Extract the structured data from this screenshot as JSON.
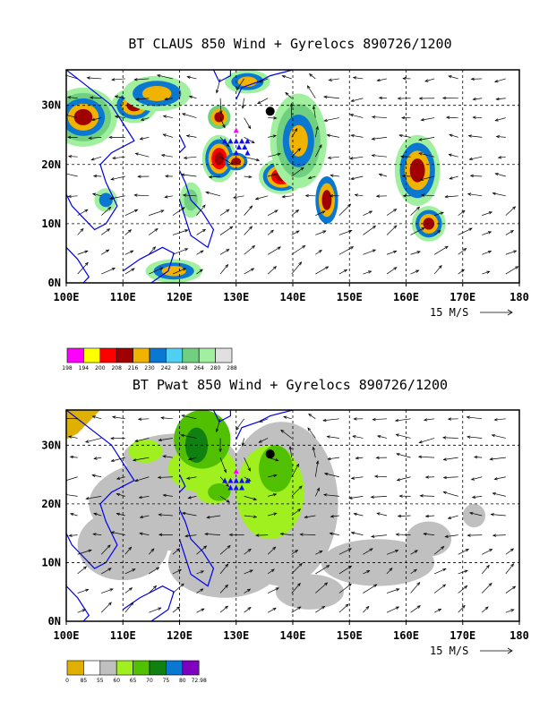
{
  "panels": [
    {
      "title": "BT CLAUS 850 Wind + Gyrelocs 890726/1200",
      "x_ticks": [
        "100E",
        "110E",
        "120E",
        "130E",
        "140E",
        "150E",
        "160E",
        "170E",
        "180"
      ],
      "y_ticks": [
        "0N",
        "10N",
        "20N",
        "30N"
      ],
      "wind_reference": "15 M/S",
      "colorbar_labels": [
        "198",
        "194",
        "200",
        "208",
        "216",
        "230",
        "242",
        "248",
        "264",
        "280",
        "288"
      ],
      "colorbar_colors": [
        "#ff00ff",
        "#ffff00",
        "#ff0000",
        "#a00000",
        "#f0b400",
        "#0a78d0",
        "#50d0f0",
        "#70d080",
        "#a0f0a0",
        "#e0e0e0"
      ]
    },
    {
      "title": "BT Pwat 850 Wind + Gyrelocs 890726/1200",
      "x_ticks": [
        "100E",
        "110E",
        "120E",
        "130E",
        "140E",
        "150E",
        "160E",
        "170E",
        "180"
      ],
      "y_ticks": [
        "0N",
        "10N",
        "20N",
        "30N"
      ],
      "wind_reference": "15 M/S",
      "colorbar_labels": [
        "0",
        "85",
        "55",
        "60",
        "65",
        "70",
        "75",
        "80",
        "72.98"
      ],
      "colorbar_colors": [
        "#e0b000",
        "#ffffff",
        "#c0c0c0",
        "#a0f020",
        "#50c000",
        "#108010",
        "#0a78d0",
        "#8000c0"
      ]
    }
  ],
  "chart_data": [
    {
      "type": "heatmap",
      "title": "BT CLAUS 850 Wind + Gyrelocs 890726/1200",
      "x_ticks": [
        "100E",
        "110E",
        "120E",
        "130E",
        "140E",
        "150E",
        "160E",
        "170E",
        "180"
      ],
      "y_ticks": [
        "0N",
        "10N",
        "20N",
        "30N"
      ],
      "xlim": [
        100,
        180
      ],
      "ylim": [
        0,
        36
      ],
      "grid": true,
      "wind_reference": "15 M/S",
      "gyre_center": [
        136,
        29
      ],
      "gyre_locations": [
        [
          130,
          24
        ],
        [
          131,
          24
        ],
        [
          132,
          24
        ],
        [
          129,
          24
        ],
        [
          128,
          24
        ],
        [
          130.5,
          23
        ],
        [
          131.5,
          23
        ],
        [
          130,
          22
        ],
        [
          132,
          22
        ]
      ],
      "gyre_center_magenta": [
        130,
        25.8
      ]
    },
    {
      "type": "heatmap",
      "title": "BT Pwat 850 Wind + Gyrelocs 890726/1200",
      "x_ticks": [
        "100E",
        "110E",
        "120E",
        "130E",
        "140E",
        "150E",
        "160E",
        "170E",
        "180"
      ],
      "y_ticks": [
        "0N",
        "10N",
        "20N",
        "30N"
      ],
      "xlim": [
        100,
        180
      ],
      "ylim": [
        0,
        36
      ],
      "grid": true,
      "wind_reference": "15 M/S",
      "gyre_center": [
        136,
        28.5
      ]
    }
  ]
}
